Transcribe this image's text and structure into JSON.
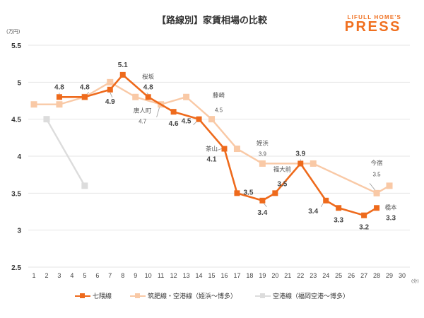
{
  "header": {
    "title": "【路線別】家賃相場の比較",
    "logo_top": "LIFULL HOME'S",
    "logo_bottom": "PRESS"
  },
  "chart_data": {
    "type": "line",
    "title": "【路線別】家賃相場の比較",
    "xlabel": "(分)",
    "ylabel": "(万円)",
    "xlim": [
      1,
      30
    ],
    "ylim": [
      2.5,
      5.5
    ],
    "x_ticks": [
      1,
      2,
      3,
      4,
      5,
      6,
      7,
      8,
      9,
      10,
      11,
      12,
      13,
      14,
      15,
      16,
      17,
      18,
      19,
      20,
      21,
      22,
      23,
      24,
      25,
      26,
      27,
      28,
      29,
      30
    ],
    "y_ticks": [
      2.5,
      3,
      3.5,
      4,
      4.5,
      5,
      5.5
    ],
    "y_tick_labels": [
      "2.5",
      "3",
      "3.5",
      "4",
      "4.5",
      "5",
      "5.5"
    ],
    "grid": true,
    "legend_position": "bottom",
    "series": [
      {
        "name": "七隈線",
        "color": "#ee6a1c",
        "points": [
          {
            "x": 3,
            "y": 4.8
          },
          {
            "x": 5,
            "y": 4.8
          },
          {
            "x": 7,
            "y": 4.9
          },
          {
            "x": 8,
            "y": 5.1
          },
          {
            "x": 10,
            "y": 4.8
          },
          {
            "x": 12,
            "y": 4.6
          },
          {
            "x": 14,
            "y": 4.5
          },
          {
            "x": 16,
            "y": 4.1
          },
          {
            "x": 17,
            "y": 3.5
          },
          {
            "x": 19,
            "y": 3.4
          },
          {
            "x": 20,
            "y": 3.5
          },
          {
            "x": 22,
            "y": 3.9
          },
          {
            "x": 24,
            "y": 3.4
          },
          {
            "x": 25,
            "y": 3.3
          },
          {
            "x": 27,
            "y": 3.2
          },
          {
            "x": 28,
            "y": 3.3
          }
        ]
      },
      {
        "name": "筑肥線・空港線（姪浜〜博多）",
        "color": "#f9c9a6",
        "points": [
          {
            "x": 1,
            "y": 4.7
          },
          {
            "x": 3,
            "y": 4.7
          },
          {
            "x": 5,
            "y": 4.8
          },
          {
            "x": 7,
            "y": 5.0
          },
          {
            "x": 9,
            "y": 4.8
          },
          {
            "x": 11,
            "y": 4.7
          },
          {
            "x": 13,
            "y": 4.8
          },
          {
            "x": 15,
            "y": 4.5
          },
          {
            "x": 17,
            "y": 4.1
          },
          {
            "x": 19,
            "y": 3.9
          },
          {
            "x": 23,
            "y": 3.9
          },
          {
            "x": 28,
            "y": 3.5
          },
          {
            "x": 29,
            "y": 3.6
          }
        ]
      },
      {
        "name": "空港線（福岡空港〜博多）",
        "color": "#dcdcdc",
        "points": [
          {
            "x": 2,
            "y": 4.5
          },
          {
            "x": 5,
            "y": 3.6
          }
        ]
      }
    ],
    "annotations": [
      {
        "text": "4.8",
        "x": 3,
        "y": 4.8,
        "pos": "above",
        "bold": true
      },
      {
        "text": "4.8",
        "x": 5,
        "y": 4.8,
        "pos": "above",
        "bold": true
      },
      {
        "text": "4.9",
        "x": 7,
        "y": 4.9,
        "pos": "below",
        "bold": true
      },
      {
        "text": "5.1",
        "x": 8,
        "y": 5.1,
        "pos": "above",
        "bold": true
      },
      {
        "text": "桜坂",
        "x": 10,
        "y": 4.8,
        "pos": "above2",
        "bold": false
      },
      {
        "text": "4.8",
        "x": 10,
        "y": 4.8,
        "pos": "above",
        "bold": true
      },
      {
        "text": "唐人町",
        "x": 11,
        "y": 4.7,
        "pos": "left-label",
        "bold": false
      },
      {
        "text": "4.7",
        "x": 11,
        "y": 4.7,
        "pos": "left-value",
        "bold": false
      },
      {
        "text": "4.6",
        "x": 12,
        "y": 4.6,
        "pos": "below",
        "bold": true
      },
      {
        "text": "4.5",
        "x": 14,
        "y": 4.5,
        "pos": "left",
        "bold": true
      },
      {
        "text": "藤崎",
        "x": 15,
        "y": 4.5,
        "pos": "above-right",
        "bold": false
      },
      {
        "text": "4.5",
        "x": 15,
        "y": 4.5,
        "pos": "below-right",
        "bold": false
      },
      {
        "text": "茶山",
        "x": 16,
        "y": 4.1,
        "pos": "left-up",
        "bold": false
      },
      {
        "text": "4.1",
        "x": 16,
        "y": 4.1,
        "pos": "left-down",
        "bold": true
      },
      {
        "text": "3.5",
        "x": 17,
        "y": 3.5,
        "pos": "right",
        "bold": true
      },
      {
        "text": "姪浜",
        "x": 19,
        "y": 3.9,
        "pos": "above2",
        "bold": false
      },
      {
        "text": "3.9",
        "x": 19,
        "y": 3.9,
        "pos": "above",
        "bold": false
      },
      {
        "text": "3.4",
        "x": 19,
        "y": 3.4,
        "pos": "below",
        "bold": true
      },
      {
        "text": "福大前",
        "x": 20,
        "y": 3.5,
        "pos": "above-right",
        "bold": false
      },
      {
        "text": "3.5",
        "x": 20,
        "y": 3.5,
        "pos": "below-right",
        "bold": true
      },
      {
        "text": "3.9",
        "x": 22,
        "y": 3.9,
        "pos": "above",
        "bold": true
      },
      {
        "text": "3.4",
        "x": 24,
        "y": 3.4,
        "pos": "left-down",
        "bold": true
      },
      {
        "text": "3.3",
        "x": 25,
        "y": 3.3,
        "pos": "below",
        "bold": true
      },
      {
        "text": "3.2",
        "x": 27,
        "y": 3.2,
        "pos": "below",
        "bold": true
      },
      {
        "text": "今宿",
        "x": 28,
        "y": 3.5,
        "pos": "above3",
        "bold": false
      },
      {
        "text": "3.5",
        "x": 28,
        "y": 3.5,
        "pos": "above2b",
        "bold": false
      },
      {
        "text": "橋本",
        "x": 28,
        "y": 3.3,
        "pos": "right-up",
        "bold": false
      },
      {
        "text": "3.3",
        "x": 28,
        "y": 3.3,
        "pos": "right-down",
        "bold": true
      }
    ]
  },
  "axes": {
    "y_unit": "(万円)",
    "x_unit": "(分)"
  },
  "legend": [
    {
      "label": "七隈線",
      "color": "#ee6a1c"
    },
    {
      "label": "筑肥線・空港線（姪浜〜博多）",
      "color": "#f9c9a6"
    },
    {
      "label": "空港線（福岡空港〜博多）",
      "color": "#dcdcdc"
    }
  ]
}
